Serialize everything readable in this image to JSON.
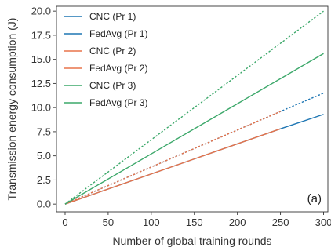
{
  "chart_data": {
    "type": "line",
    "xlabel": "Number of global training rounds",
    "ylabel": "Transmission energy consumption (J)",
    "xlim": [
      -10,
      305
    ],
    "ylim": [
      -0.8,
      20.5
    ],
    "xticks": [
      0,
      50,
      100,
      150,
      200,
      250,
      300
    ],
    "yticks": [
      0.0,
      2.5,
      5.0,
      7.5,
      10.0,
      12.5,
      15.0,
      17.5,
      20.0
    ],
    "xtick_labels": [
      "0",
      "50",
      "100",
      "150",
      "200",
      "250",
      "300"
    ],
    "ytick_labels": [
      "0.0",
      "2.5",
      "5.0",
      "7.5",
      "10.0",
      "12.5",
      "15.0",
      "17.5",
      "20.0"
    ],
    "grid": false,
    "legend_position": "top-left",
    "panel_label": "(a)",
    "series": [
      {
        "name": "CNC (Pr 1)",
        "color": "#1f77b4",
        "dash": "solid",
        "x": [
          0,
          250,
          300
        ],
        "y": [
          0,
          7.8,
          9.3
        ]
      },
      {
        "name": "FedAvg (Pr 1)",
        "color": "#1f77b4",
        "dash": "dashed",
        "x": [
          0,
          250,
          300
        ],
        "y": [
          0,
          9.6,
          11.5
        ]
      },
      {
        "name": "CNC (Pr 2)",
        "color": "#e8734a",
        "dash": "solid",
        "x": [
          0,
          250
        ],
        "y": [
          0,
          7.8
        ]
      },
      {
        "name": "FedAvg (Pr 2)",
        "color": "#e8734a",
        "dash": "dashed",
        "x": [
          0,
          250
        ],
        "y": [
          0,
          9.6
        ]
      },
      {
        "name": "CNC (Pr 3)",
        "color": "#3ca86a",
        "dash": "solid",
        "x": [
          0,
          100,
          200,
          300
        ],
        "y": [
          0,
          5.2,
          10.4,
          15.6
        ]
      },
      {
        "name": "FedAvg (Pr 3)",
        "color": "#3ca86a",
        "dash": "dashed",
        "x": [
          0,
          300
        ],
        "y": [
          0,
          20.0
        ]
      }
    ]
  }
}
